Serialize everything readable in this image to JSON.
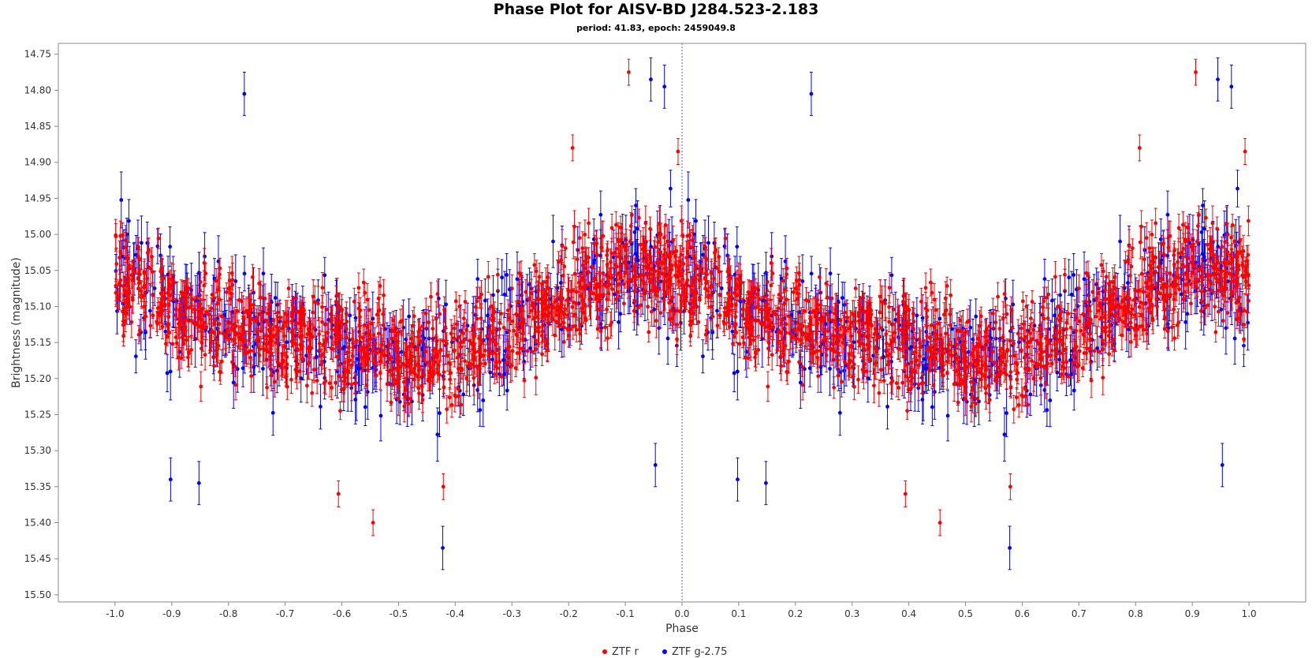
{
  "chart_data": {
    "type": "scatter",
    "title": "Phase Plot for AISV-BD J284.523-2.183",
    "subtitle": "period: 41.83, epoch: 2459049.8",
    "xlabel": "Phase",
    "ylabel": "Brightness (magnitude)",
    "xlim": [
      -1.1,
      1.1
    ],
    "ylim": [
      15.51,
      14.735
    ],
    "y_inverted": true,
    "x_ticks": [
      "-1.0",
      "-0.9",
      "-0.8",
      "-0.7",
      "-0.6",
      "-0.5",
      "-0.4",
      "-0.3",
      "-0.2",
      "-0.1",
      "0.0",
      "0.1",
      "0.2",
      "0.3",
      "0.4",
      "0.5",
      "0.6",
      "0.7",
      "0.8",
      "0.9",
      "1.0"
    ],
    "y_ticks": [
      "14.75",
      "14.80",
      "14.85",
      "14.90",
      "14.95",
      "15.00",
      "15.05",
      "15.10",
      "15.15",
      "15.20",
      "15.25",
      "15.30",
      "15.35",
      "15.40",
      "15.45",
      "15.50"
    ],
    "grid": false,
    "error_bars": true,
    "vertical_marker_x": 0.0,
    "legend_position": "bottom-center",
    "phase_repeat": "points plotted at phase and phase-1 (-1.0 to 1.0)",
    "series": [
      {
        "name": "ZTF r",
        "color": "#ff0000",
        "approx_error": 0.018,
        "notable_points": [
          {
            "x": 0.906,
            "y": 14.775
          },
          {
            "x": -0.094,
            "y": 14.775
          },
          {
            "x": 0.993,
            "y": 14.885
          },
          {
            "x": -0.007,
            "y": 14.885
          },
          {
            "x": 0.455,
            "y": 15.4
          },
          {
            "x": -0.545,
            "y": 15.4
          },
          {
            "x": 0.394,
            "y": 15.36
          },
          {
            "x": -0.606,
            "y": 15.36
          },
          {
            "x": 0.579,
            "y": 15.35
          },
          {
            "x": -0.421,
            "y": 15.35
          },
          {
            "x": 0.807,
            "y": 14.88
          },
          {
            "x": -0.193,
            "y": 14.88
          }
        ]
      },
      {
        "name": "ZTF g-2.75",
        "color": "#0000ff",
        "approx_error": 0.03,
        "notable_points": [
          {
            "x": 0.228,
            "y": 14.805
          },
          {
            "x": -0.772,
            "y": 14.805
          },
          {
            "x": 0.945,
            "y": 14.785
          },
          {
            "x": -0.055,
            "y": 14.785
          },
          {
            "x": 0.969,
            "y": 14.795
          },
          {
            "x": -0.031,
            "y": 14.795
          },
          {
            "x": 0.578,
            "y": 15.435
          },
          {
            "x": -0.422,
            "y": 15.435
          },
          {
            "x": 0.953,
            "y": 15.32
          },
          {
            "x": -0.047,
            "y": 15.32
          },
          {
            "x": 0.098,
            "y": 15.34
          },
          {
            "x": -0.902,
            "y": 15.34
          },
          {
            "x": 0.148,
            "y": 15.345
          },
          {
            "x": -0.852,
            "y": 15.345
          }
        ]
      }
    ]
  }
}
